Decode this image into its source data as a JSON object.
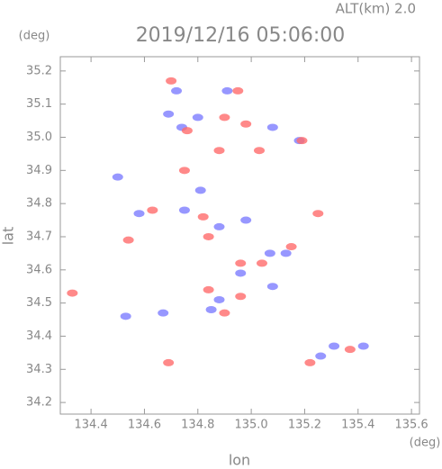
{
  "chart_data": {
    "type": "scatter",
    "title": "2019/12/16 05:06:00",
    "subtitle": "ALT(km) 2.0",
    "x_label": "lon",
    "y_label": "lat",
    "x_unit": "(deg)",
    "y_unit": "(deg)",
    "xlim": [
      134.285,
      135.63
    ],
    "ylim": [
      34.165,
      35.243
    ],
    "xticks": [
      134.4,
      134.6,
      134.8,
      {
        "value": 135,
        "label": "135.0"
      },
      135.2,
      135.4,
      135.6
    ],
    "yticks": [
      {
        "value": 34.2,
        "label": "34.2"
      },
      34.3,
      34.4,
      34.5,
      34.6,
      34.7,
      34.8,
      34.9,
      {
        "value": 35,
        "label": "35.0"
      },
      35.1,
      35.2
    ],
    "series": [
      {
        "color": "#7d7dff",
        "x": [
          134.69,
          134.74,
          134.8,
          134.72,
          134.91,
          135.08,
          135.18,
          134.5,
          134.58,
          134.75,
          134.81,
          134.88,
          134.98,
          134.88,
          134.85,
          134.67,
          135.07,
          135.13,
          135.26,
          135.31,
          135.42,
          134.53,
          134.96,
          135.08
        ],
        "y": [
          35.07,
          35.03,
          35.06,
          35.14,
          35.14,
          35.03,
          34.99,
          34.88,
          34.77,
          34.78,
          34.84,
          34.73,
          34.75,
          34.51,
          34.48,
          34.47,
          34.65,
          34.65,
          34.34,
          34.37,
          34.37,
          34.46,
          34.59,
          34.55
        ]
      },
      {
        "color": "#ff6b6b",
        "x": [
          134.7,
          134.76,
          134.9,
          134.95,
          134.98,
          135.19,
          134.88,
          135.03,
          134.54,
          134.82,
          134.63,
          134.84,
          134.96,
          135.04,
          135.15,
          135.25,
          134.33,
          134.69,
          135.22,
          135.37,
          134.84,
          134.9,
          134.96,
          134.75
        ],
        "y": [
          35.17,
          35.02,
          35.06,
          35.14,
          35.04,
          34.99,
          34.96,
          34.96,
          34.69,
          34.76,
          34.78,
          34.7,
          34.62,
          34.62,
          34.67,
          34.77,
          34.53,
          34.32,
          34.32,
          34.36,
          34.54,
          34.47,
          34.52,
          34.9
        ]
      }
    ]
  }
}
